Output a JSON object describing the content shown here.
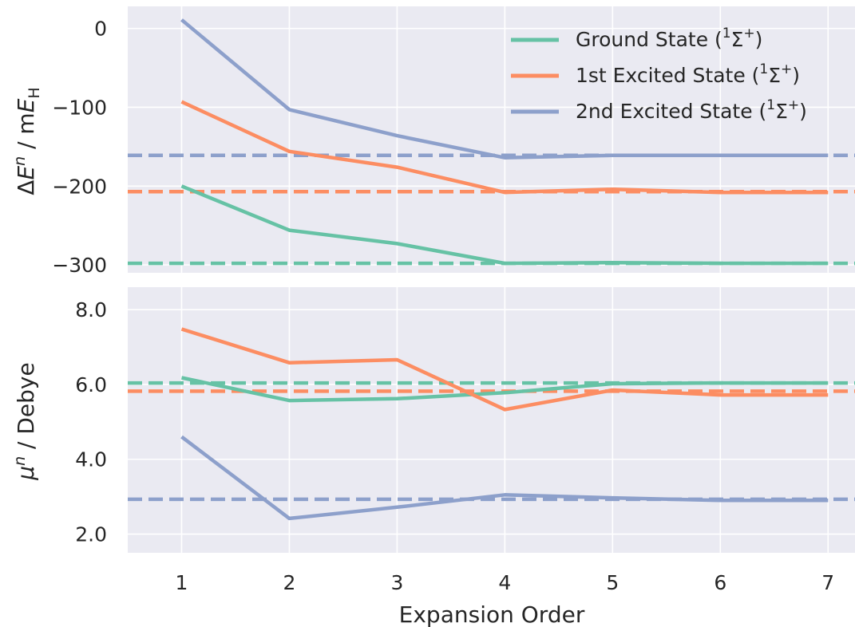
{
  "chart_data": [
    {
      "type": "line",
      "panel": "top",
      "xlabel": "",
      "ylabel": "ΔEⁿ / mEH",
      "ylabel_parts": {
        "delta": "Δ",
        "E": "E",
        "n": "n",
        "sep": " / m",
        "E2": "E",
        "sub": "H"
      },
      "ylim": [
        -310,
        28
      ],
      "yticks": [
        0,
        -100,
        -200,
        -300
      ],
      "ytick_labels": [
        "0",
        "−100",
        "−200",
        "−300"
      ],
      "x": [
        1,
        2,
        3,
        4,
        5,
        6,
        7
      ],
      "xlim": [
        0.5,
        7.25
      ],
      "grid": true,
      "legend_placement": "top-right",
      "series": [
        {
          "name": "Ground State (¹Σ⁺)",
          "name_parts": [
            "Ground State (",
            "1",
            "Σ",
            "+",
            ")"
          ],
          "color": "#66c2a5",
          "values": [
            -200,
            -256,
            -273,
            -298,
            -297,
            -298,
            -298
          ],
          "reference": -298
        },
        {
          "name": "1st Excited State (¹Σ⁺)",
          "name_parts": [
            "1st Excited State (",
            "1",
            "Σ",
            "+",
            ")"
          ],
          "color": "#fc8d62",
          "values": [
            -93,
            -156,
            -176,
            -208,
            -204,
            -208,
            -208
          ],
          "reference": -207
        },
        {
          "name": "2nd Excited State (¹Σ⁺)",
          "name_parts": [
            "2nd Excited State (",
            "1",
            "Σ",
            "+",
            ")"
          ],
          "color": "#8da0cb",
          "values": [
            11,
            -103,
            -136,
            -164,
            -161,
            -161,
            -161
          ],
          "reference": -161
        }
      ]
    },
    {
      "type": "line",
      "panel": "bottom",
      "xlabel": "Expansion Order",
      "ylabel": "μⁿ / Debye",
      "ylabel_parts": {
        "mu": "μ",
        "n": "n",
        "rest": " / Debye"
      },
      "ylim": [
        1.5,
        8.6
      ],
      "yticks": [
        8.0,
        6.0,
        4.0,
        2.0
      ],
      "ytick_labels": [
        "8.0",
        "6.0",
        "4.0",
        "2.0"
      ],
      "x": [
        1,
        2,
        3,
        4,
        5,
        6,
        7
      ],
      "xtick_labels": [
        "1",
        "2",
        "3",
        "4",
        "5",
        "6",
        "7"
      ],
      "xlim": [
        0.5,
        7.25
      ],
      "grid": true,
      "series": [
        {
          "name": "Ground State (¹Σ⁺)",
          "color": "#66c2a5",
          "values": [
            6.18,
            5.57,
            5.62,
            5.78,
            6.02,
            6.04,
            6.04
          ],
          "reference": 6.04
        },
        {
          "name": "1st Excited State (¹Σ⁺)",
          "color": "#fc8d62",
          "values": [
            7.48,
            6.58,
            6.66,
            5.33,
            5.85,
            5.72,
            5.72
          ],
          "reference": 5.82
        },
        {
          "name": "2nd Excited State (¹Σ⁺)",
          "color": "#8da0cb",
          "values": [
            4.6,
            2.42,
            2.72,
            3.05,
            2.97,
            2.9,
            2.9
          ],
          "reference": 2.93
        }
      ]
    }
  ],
  "style": {
    "panel_bg": "#eaeaf2",
    "grid_color": "#ffffff",
    "text_color": "#262626"
  }
}
